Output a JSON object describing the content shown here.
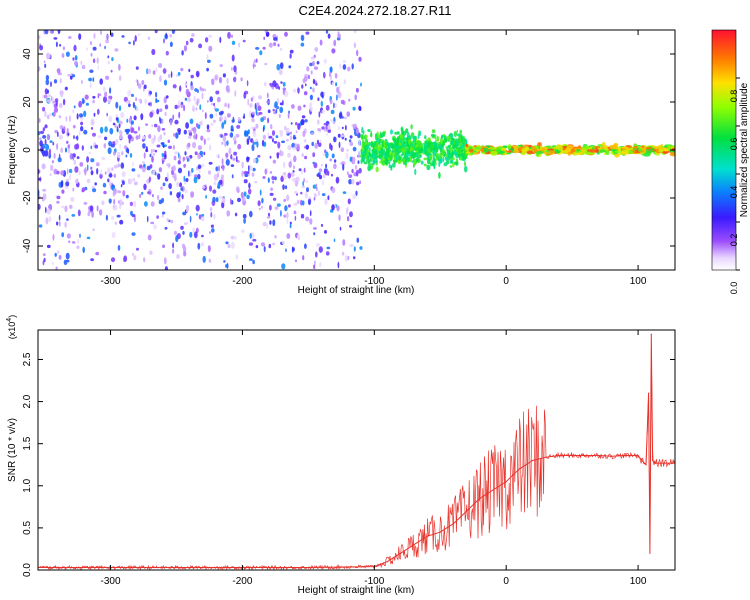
{
  "title": "C2E4.2024.272.18.27.R11",
  "chart_data": [
    {
      "type": "heatmap",
      "xlabel": "Height of straight line (km)",
      "ylabel": "Frequency (Hz)",
      "xlim": [
        -355,
        128
      ],
      "ylim": [
        -50,
        50
      ],
      "xticks": [
        -300,
        -200,
        -100,
        0,
        100
      ],
      "yticks": [
        -40,
        -20,
        0,
        20,
        40
      ],
      "colorbar": {
        "label": "Normalized spectral amplitude",
        "range": [
          0,
          1
        ],
        "ticks": [
          "0.0",
          "0.2",
          "0.4",
          "0.6",
          "0.8"
        ]
      },
      "regions": [
        {
          "x": [
            -355,
            -110
          ],
          "freq_spread": [
            -50,
            50
          ],
          "level": [
            0.1,
            0.35
          ]
        },
        {
          "x": [
            -110,
            -30
          ],
          "freq_spread": [
            -12,
            12
          ],
          "level": [
            0.45,
            0.65
          ]
        },
        {
          "x": [
            -30,
            128
          ],
          "freq_spread": [
            -3,
            3
          ],
          "level": [
            0.55,
            0.95
          ]
        }
      ]
    },
    {
      "type": "line",
      "xlabel": "Height of straight line (km)",
      "ylabel": "SNR (10 * v/v)",
      "yscale_label": "(x10",
      "yscale_exp": "4",
      "xlim": [
        -355,
        128
      ],
      "ylim": [
        0,
        2.85
      ],
      "xticks": [
        -300,
        -200,
        -100,
        0,
        100
      ],
      "yticks": [
        "0.0",
        "0.5",
        "1.0",
        "1.5",
        "2.0",
        "2.5"
      ],
      "series": [
        {
          "color": "#e8332c",
          "x": [
            -355,
            -300,
            -250,
            -200,
            -150,
            -100,
            -90,
            -80,
            -70,
            -60,
            -50,
            -40,
            -30,
            -20,
            -10,
            0,
            10,
            20,
            30,
            40,
            50,
            60,
            70,
            80,
            90,
            100,
            103,
            106,
            108,
            109,
            110,
            111,
            113,
            120,
            128
          ],
          "y": [
            0.03,
            0.03,
            0.03,
            0.03,
            0.03,
            0.04,
            0.1,
            0.2,
            0.3,
            0.4,
            0.45,
            0.55,
            0.7,
            0.85,
            0.95,
            1.05,
            1.2,
            1.3,
            1.34,
            1.36,
            1.36,
            1.36,
            1.36,
            1.35,
            1.36,
            1.36,
            1.3,
            1.25,
            2.1,
            0.2,
            2.8,
            1.3,
            1.27,
            1.27,
            1.27
          ]
        }
      ]
    }
  ]
}
